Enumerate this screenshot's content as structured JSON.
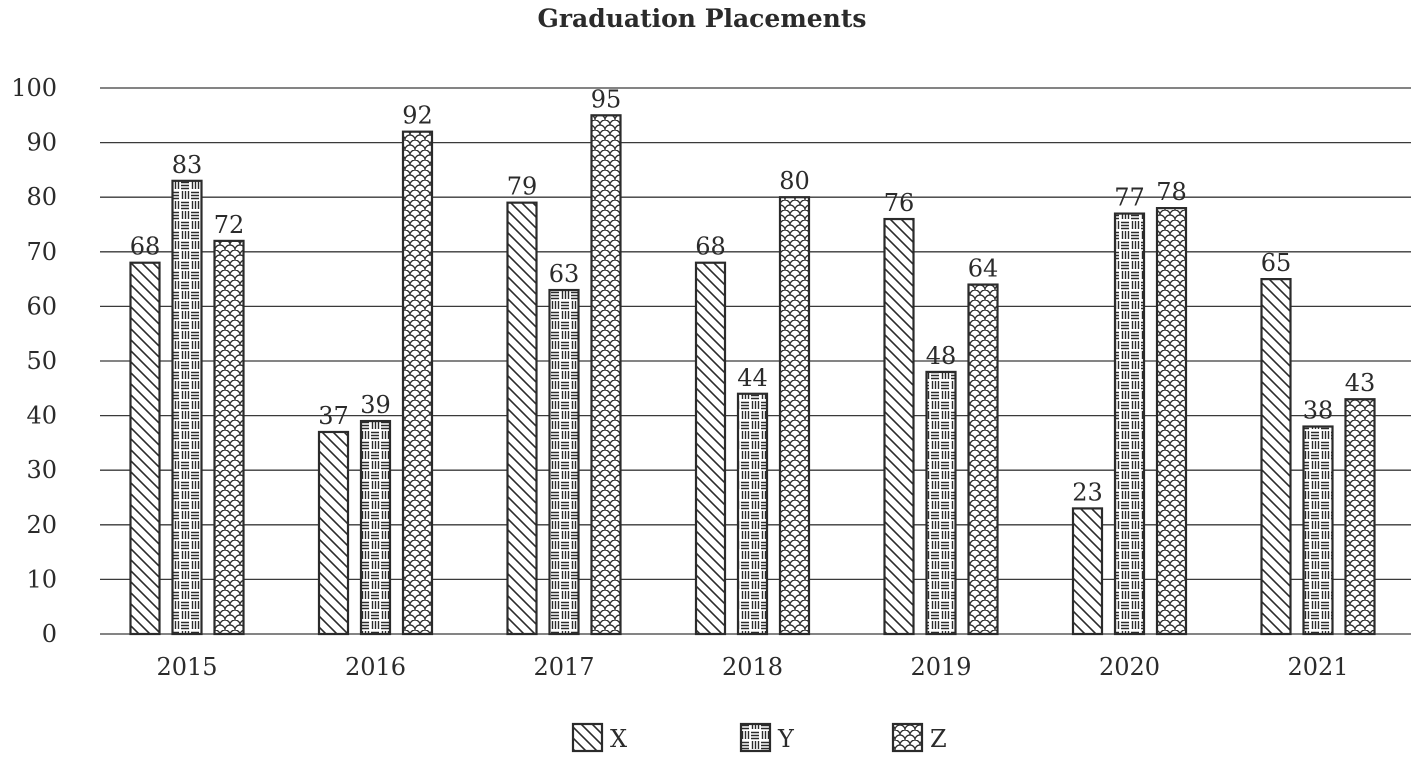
{
  "chart_data": {
    "type": "bar",
    "title": "Graduation Placements",
    "xlabel": "",
    "ylabel": "",
    "categories": [
      "2015",
      "2016",
      "2017",
      "2018",
      "2019",
      "2020",
      "2021"
    ],
    "series": [
      {
        "name": "X",
        "pattern": "diagonal-hatch",
        "values": [
          68,
          37,
          79,
          68,
          76,
          23,
          65
        ]
      },
      {
        "name": "Y",
        "pattern": "horizontal-vertical-dashes",
        "values": [
          83,
          39,
          63,
          44,
          48,
          77,
          38
        ]
      },
      {
        "name": "Z",
        "pattern": "scales",
        "values": [
          72,
          92,
          95,
          80,
          64,
          78,
          43
        ]
      }
    ],
    "ylim": [
      0,
      100
    ],
    "yticks": [
      "0",
      "10",
      "20",
      "30",
      "40",
      "50",
      "60",
      "70",
      "80",
      "90",
      "100"
    ],
    "grid": true,
    "data_labels": true,
    "legend_position": "bottom-center",
    "colors": {
      "ink": "#2b2b2b",
      "background": "#ffffff"
    }
  }
}
